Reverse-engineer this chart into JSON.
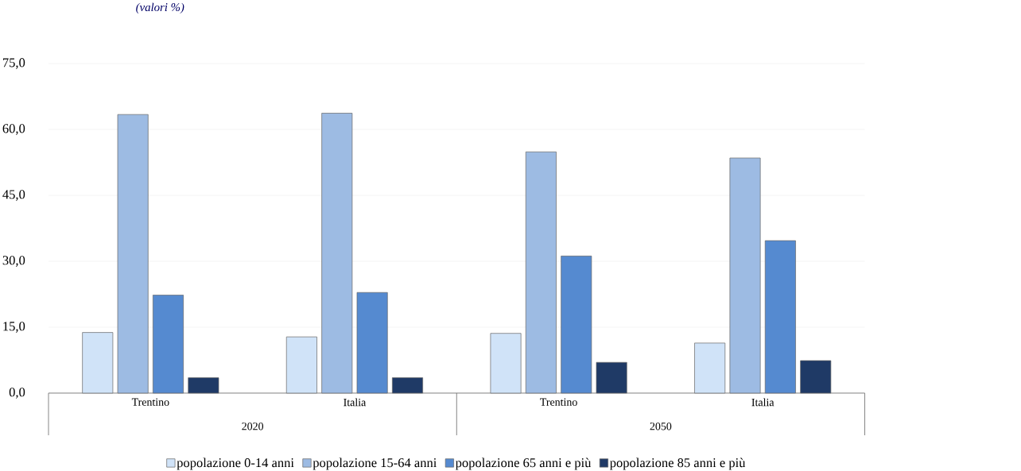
{
  "chart_data": {
    "type": "bar",
    "subtitle": "(valori %)",
    "categories": [
      "Trentino",
      "Italia",
      "Trentino",
      "Italia"
    ],
    "series": [
      {
        "name": "popolazione 0-14 anni",
        "color": "#d0e3f8",
        "values": [
          13.8,
          12.8,
          13.6,
          11.4
        ]
      },
      {
        "name": "popolazione 15-64 anni",
        "color": "#9dbbe3",
        "values": [
          63.4,
          63.7,
          54.9,
          53.5
        ]
      },
      {
        "name": "popolazione 65 anni e più",
        "color": "#558ad0",
        "values": [
          22.3,
          22.9,
          31.2,
          34.7
        ]
      },
      {
        "name": "popolazione 85 anni e più",
        "color": "#1f3a66",
        "values": [
          3.5,
          3.5,
          7.0,
          7.4
        ]
      }
    ],
    "annotations": [
      "2020",
      "2050"
    ],
    "ylim": [
      0,
      75
    ],
    "yticks": [
      {
        "value": 0,
        "label": "0,0"
      },
      {
        "value": 15,
        "label": "15,0"
      },
      {
        "value": 30,
        "label": "30,0"
      },
      {
        "value": 45,
        "label": "45,0"
      },
      {
        "value": 60,
        "label": "60,0"
      },
      {
        "value": 75,
        "label": "75,0"
      }
    ],
    "grid": "y",
    "legend": "bottom"
  }
}
